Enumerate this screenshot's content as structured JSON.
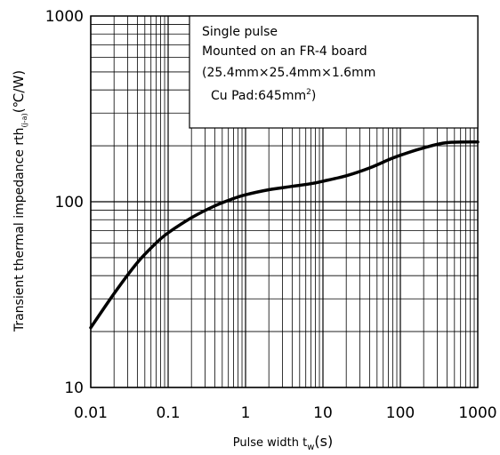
{
  "chart_data": {
    "type": "line",
    "title": "",
    "xlabel": {
      "main": "Pulse width  t",
      "sub": "w",
      "unit": "(s)"
    },
    "ylabel": {
      "main": "Transient thermal impedance  rth",
      "sub": "(j-a)",
      "unit": "(℃/W)"
    },
    "xscale": "log",
    "yscale": "log",
    "xlim": [
      0.01,
      1000
    ],
    "ylim": [
      10,
      1000
    ],
    "xticks": [
      "0.01",
      "0.1",
      "1",
      "10",
      "100",
      "1000"
    ],
    "yticks": [
      "10",
      "100",
      "1000"
    ],
    "grid": true,
    "annotation": {
      "line1": "Single pulse",
      "line2": "Mounted on an FR-4 board",
      "line3": "(25.4mm×25.4mm×1.6mm",
      "line4_prefix": "Cu Pad:645mm",
      "line4_sup": "2",
      "line4_suffix": ")"
    },
    "series": [
      {
        "x": [
          0.01,
          0.02,
          0.04,
          0.07,
          0.1,
          0.2,
          0.4,
          0.7,
          1,
          2,
          4,
          7,
          10,
          20,
          40,
          70,
          100,
          200,
          400,
          1000
        ],
        "y": [
          21,
          32,
          47,
          60,
          68,
          82,
          95,
          104,
          109,
          116,
          121,
          125,
          129,
          138,
          152,
          168,
          178,
          195,
          208,
          210
        ]
      }
    ]
  }
}
